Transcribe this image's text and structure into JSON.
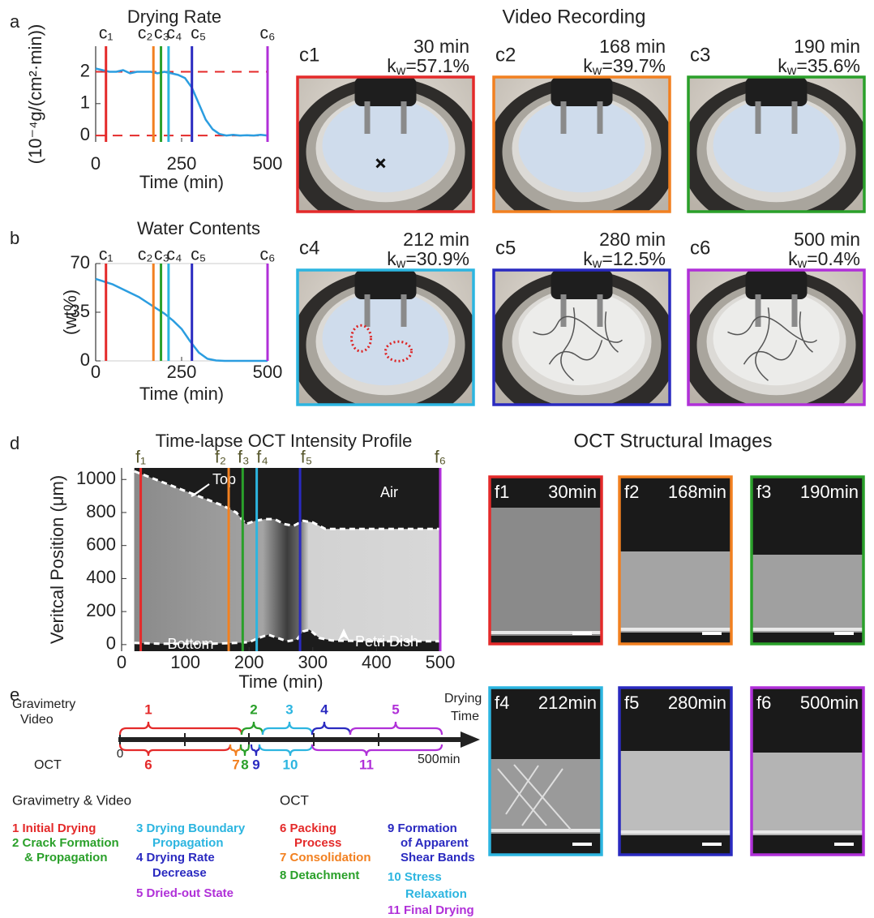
{
  "panel_letters": [
    "a",
    "b",
    "d",
    "e"
  ],
  "chart_data": [
    {
      "type": "line",
      "title": "Drying Rate",
      "y_label": "(10⁻⁴g/(cm²·min))",
      "x_label": "Time (min)",
      "xlim": [
        0,
        500
      ],
      "xticks": [
        0,
        250,
        500
      ],
      "ylim": [
        -0.2,
        2.8
      ],
      "yticks": [
        0,
        1,
        2
      ],
      "x": [
        0,
        20,
        40,
        60,
        80,
        100,
        120,
        140,
        160,
        180,
        200,
        220,
        240,
        260,
        280,
        300,
        320,
        340,
        360,
        380,
        400,
        420,
        440,
        460,
        480,
        500
      ],
      "values": [
        2.1,
        2.05,
        2.0,
        2.0,
        2.05,
        1.95,
        2.0,
        2.0,
        2.0,
        1.95,
        2.0,
        1.95,
        1.9,
        1.8,
        1.5,
        1.0,
        0.5,
        0.2,
        0.05,
        0,
        0.02,
        0,
        0.01,
        0,
        0.02,
        0
      ],
      "color": "#2b9de0",
      "hlines": {
        "values": [
          2,
          0
        ],
        "color": "#e42a2a"
      },
      "markers": {
        "labels": [
          "c₁",
          "c₂",
          "c₃",
          "c₄",
          "c₅",
          "c₆"
        ],
        "x": [
          30,
          168,
          190,
          212,
          280,
          500
        ],
        "colors": [
          "#e42a2a",
          "#f28020",
          "#2aa02a",
          "#2cb5e0",
          "#2a2ac0",
          "#b030d8"
        ],
        "label_color": "#222222"
      }
    },
    {
      "type": "line",
      "title": "Water Contents",
      "y_label": "(wt%)",
      "x_label": "Time (min)",
      "xlim": [
        0,
        500
      ],
      "xticks": [
        0,
        250,
        500
      ],
      "ylim": [
        0,
        70
      ],
      "yticks": [
        0,
        35,
        70
      ],
      "x": [
        0,
        25,
        50,
        75,
        100,
        125,
        150,
        175,
        200,
        225,
        250,
        275,
        300,
        325,
        350,
        375,
        400,
        425,
        450,
        475,
        500
      ],
      "values": [
        59,
        57,
        55,
        52,
        49,
        46,
        42,
        38,
        34,
        29,
        23,
        14,
        6,
        1.5,
        0.3,
        0,
        0,
        0,
        0,
        0,
        0
      ],
      "color": "#2b9de0",
      "markers": {
        "labels": [
          "c₁",
          "c₂",
          "c₃",
          "c₄",
          "c₅",
          "c₆"
        ],
        "x": [
          30,
          168,
          190,
          212,
          280,
          500
        ],
        "colors": [
          "#e42a2a",
          "#f28020",
          "#2aa02a",
          "#2cb5e0",
          "#2a2ac0",
          "#b030d8"
        ],
        "label_color": "#222222"
      }
    },
    {
      "type": "heatmap",
      "title": "Time-lapse OCT Intensity Profile",
      "y_label": "Veritcal Position (μm)",
      "x_label": "Time (min)",
      "xlim": [
        0,
        500
      ],
      "xticks": [
        0,
        100,
        200,
        300,
        400,
        500
      ],
      "ylim": [
        -40,
        1070
      ],
      "yticks": [
        0,
        200,
        400,
        600,
        800,
        1000
      ],
      "annotations": [
        "Top",
        "Bottom",
        "Air",
        "Petri Dish"
      ],
      "boundaries": [
        {
          "x": [
            20,
            40,
            60,
            80,
            100,
            120,
            140,
            160,
            180,
            195,
            210,
            225,
            240,
            255,
            270,
            285,
            300,
            320,
            350,
            400,
            450,
            500
          ],
          "values": [
            1050,
            1020,
            990,
            960,
            930,
            900,
            870,
            840,
            800,
            730,
            750,
            760,
            760,
            730,
            720,
            750,
            740,
            700,
            700,
            700,
            700,
            700
          ]
        },
        {
          "x": [
            20,
            60,
            100,
            140,
            180,
            200,
            215,
            230,
            245,
            260,
            275,
            285,
            295,
            310,
            330,
            400,
            500
          ],
          "values": [
            10,
            5,
            5,
            5,
            10,
            15,
            40,
            60,
            40,
            20,
            30,
            80,
            90,
            40,
            25,
            20,
            20
          ]
        }
      ],
      "boundary_color": "#ffffff",
      "markers": {
        "labels": [
          "f₁",
          "f₂",
          "f₃",
          "f₄",
          "f₅",
          "f₆"
        ],
        "x": [
          30,
          168,
          190,
          212,
          280,
          500
        ],
        "colors": [
          "#e42a2a",
          "#f28020",
          "#2aa02a",
          "#2cb5e0",
          "#2a2ac0",
          "#b030d8"
        ],
        "label_color": "#55552a"
      }
    }
  ],
  "video": {
    "title": "Video Recording",
    "kw_symbol": "k",
    "kw_subscript": "w",
    "panels": [
      {
        "label": "c1",
        "time": "30 min",
        "kw": "=57.1%",
        "color": "#e42a2a"
      },
      {
        "label": "c2",
        "time": "168 min",
        "kw": "=39.7%",
        "color": "#f28020"
      },
      {
        "label": "c3",
        "time": "190 min",
        "kw": "=35.6%",
        "color": "#2aa02a"
      },
      {
        "label": "c4",
        "time": "212 min",
        "kw": "=30.9%",
        "color": "#2cb5e0"
      },
      {
        "label": "c5",
        "time": "280 min",
        "kw": "=12.5%",
        "color": "#2a2ac0"
      },
      {
        "label": "c6",
        "time": "500 min",
        "kw": "=0.4%",
        "color": "#b030d8"
      }
    ]
  },
  "oct_images": {
    "title": "OCT Structural Images",
    "panels": [
      {
        "label": "f1",
        "time": "30min",
        "color": "#e42a2a"
      },
      {
        "label": "f2",
        "time": "168min",
        "color": "#f28020"
      },
      {
        "label": "f3",
        "time": "190min",
        "color": "#2aa02a"
      },
      {
        "label": "f4",
        "time": "212min",
        "color": "#2cb5e0"
      },
      {
        "label": "f5",
        "time": "280min",
        "color": "#2a2ac0"
      },
      {
        "label": "f6",
        "time": "500min",
        "color": "#b030d8"
      }
    ]
  },
  "timeline": {
    "side_labels": [
      "Gravimetry",
      "Video"
    ],
    "end_labels": [
      "Drying",
      "Time"
    ],
    "oct_label": "OCT",
    "start": "0",
    "end": "500min",
    "top": [
      {
        "label": "1",
        "color": "#e42a2a"
      },
      {
        "label": "2",
        "color": "#2aa02a"
      },
      {
        "label": "3",
        "color": "#2cb5e0"
      },
      {
        "label": "4",
        "color": "#2a2ac0"
      },
      {
        "label": "5",
        "color": "#b030d8"
      }
    ],
    "bottom": [
      {
        "label": "6",
        "color": "#e42a2a"
      },
      {
        "label": "7",
        "color": "#f28020"
      },
      {
        "label": "8",
        "color": "#2aa02a"
      },
      {
        "label": "9",
        "color": "#2a2ac0"
      },
      {
        "label": "10",
        "color": "#2cb5e0"
      },
      {
        "label": "11",
        "color": "#b030d8"
      }
    ]
  },
  "legend": {
    "groups": [
      {
        "heading": "Gravimetry & Video",
        "items": [
          {
            "lines": [
              "1 Initial Drying"
            ],
            "color": "#e42a2a"
          },
          {
            "lines": [
              "2 Crack Formation",
              "& Propagation"
            ],
            "color": "#2aa02a"
          },
          {
            "lines": [
              "3 Drying Boundary",
              "Propagation"
            ],
            "color": "#2cb5e0"
          },
          {
            "lines": [
              "4 Drying Rate",
              "Decrease"
            ],
            "color": "#2a2ac0"
          },
          {
            "lines": [
              "5 Dried-out State"
            ],
            "color": "#b030d8"
          }
        ]
      },
      {
        "heading": "OCT",
        "items": [
          {
            "lines": [
              "6 Packing",
              "Process"
            ],
            "color": "#e42a2a"
          },
          {
            "lines": [
              "7 Consolidation"
            ],
            "color": "#f28020"
          },
          {
            "lines": [
              "8 Detachment"
            ],
            "color": "#2aa02a"
          },
          {
            "lines": [
              "9 Formation",
              "of Apparent",
              "Shear Bands"
            ],
            "color": "#2a2ac0"
          },
          {
            "lines": [
              "10 Stress",
              "Relaxation"
            ],
            "color": "#2cb5e0"
          },
          {
            "lines": [
              "11 Final Drying"
            ],
            "color": "#b030d8"
          }
        ]
      }
    ]
  }
}
